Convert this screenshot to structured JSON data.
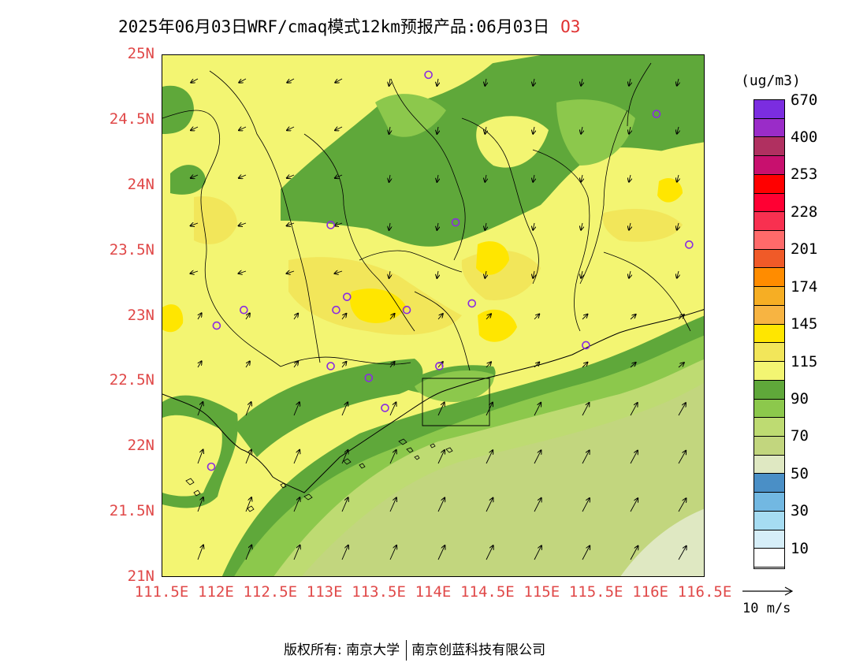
{
  "title": {
    "text": "2025年06月03日WRF/cmaq模式12km预报产品:06月03日",
    "species": "O3"
  },
  "map": {
    "lat_labels": [
      "25N",
      "24.5N",
      "24N",
      "23.5N",
      "23N",
      "22.5N",
      "22N",
      "21.5N",
      "21N"
    ],
    "lon_labels": [
      "111.5E",
      "112E",
      "112.5E",
      "113E",
      "113.5E",
      "114E",
      "114.5E",
      "115E",
      "115.5E",
      "116E",
      "116.5E"
    ],
    "extent": {
      "lon": [
        111.5,
        116.5
      ],
      "lat": [
        21,
        25
      ]
    },
    "station_color": "#8a2be2"
  },
  "colorbar": {
    "unit": "(ug/m3)",
    "colors": [
      "#ffffff",
      "#d6eef8",
      "#a6dcf2",
      "#72b8e2",
      "#4a8fc6",
      "#dfe8c2",
      "#c2d67e",
      "#bedb72",
      "#8cc84c",
      "#5fa83a",
      "#f3f572",
      "#f2e65a",
      "#ffe600",
      "#f7b442",
      "#f6ae24",
      "#ff8c00",
      "#f05a28",
      "#ff6a6a",
      "#f83050",
      "#ff0033",
      "#ff0000",
      "#c8106e",
      "#b03060",
      "#9a2cc8",
      "#7b2de0"
    ],
    "tick_labels": [
      "10",
      "30",
      "50",
      "70",
      "90",
      "115",
      "145",
      "174",
      "201",
      "228",
      "253",
      "400",
      "670"
    ]
  },
  "wind_reference": {
    "label": "10 m/s"
  },
  "footer": {
    "copyright": "版权所有: 南京大学",
    "company": "南京创蓝科技有限公司"
  }
}
